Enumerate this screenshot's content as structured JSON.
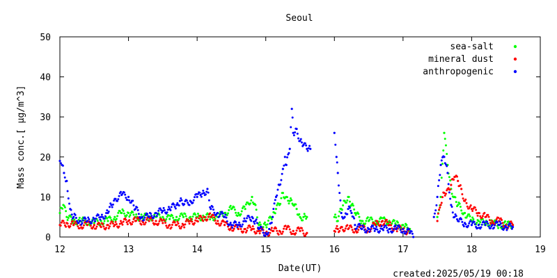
{
  "chart_data": {
    "type": "scatter",
    "title": "Seoul",
    "xlabel": "Date(UT)",
    "ylabel": "Mass conc.[ μg/m^3]",
    "xlim": [
      12,
      19
    ],
    "ylim": [
      0,
      50
    ],
    "x_ticks": [
      "12",
      "13",
      "14",
      "15",
      "16",
      "17",
      "18",
      "19"
    ],
    "y_ticks": [
      "0",
      "10",
      "20",
      "30",
      "40",
      "50"
    ],
    "grid": false,
    "legend_position": "top-right",
    "series": [
      {
        "name": "sea-salt",
        "color": "#00ff00",
        "points": [
          [
            12.0,
            6
          ],
          [
            12.05,
            8
          ],
          [
            12.1,
            5
          ],
          [
            12.2,
            4
          ],
          [
            12.3,
            4
          ],
          [
            12.4,
            4
          ],
          [
            12.5,
            3.5
          ],
          [
            12.6,
            4
          ],
          [
            12.7,
            4
          ],
          [
            12.8,
            5
          ],
          [
            12.9,
            6
          ],
          [
            13.0,
            6
          ],
          [
            13.1,
            5
          ],
          [
            13.2,
            5
          ],
          [
            13.3,
            5
          ],
          [
            13.4,
            5
          ],
          [
            13.5,
            5
          ],
          [
            13.6,
            4.5
          ],
          [
            13.7,
            5
          ],
          [
            13.8,
            5
          ],
          [
            13.9,
            5
          ],
          [
            14.0,
            5
          ],
          [
            14.1,
            5
          ],
          [
            14.2,
            5
          ],
          [
            14.3,
            5
          ],
          [
            14.4,
            6
          ],
          [
            14.5,
            7
          ],
          [
            14.6,
            6
          ],
          [
            14.7,
            7
          ],
          [
            14.8,
            10
          ],
          [
            14.85,
            8
          ],
          [
            14.9,
            3
          ],
          [
            14.95,
            2
          ],
          [
            15.0,
            3
          ],
          [
            15.1,
            5
          ],
          [
            15.15,
            7
          ],
          [
            15.2,
            8
          ],
          [
            15.25,
            11
          ],
          [
            15.3,
            10
          ],
          [
            15.35,
            9
          ],
          [
            15.4,
            8
          ],
          [
            15.45,
            7
          ],
          [
            15.5,
            5
          ],
          [
            15.55,
            5
          ],
          [
            15.6,
            5
          ],
          [
            16.0,
            5
          ],
          [
            16.05,
            4
          ],
          [
            16.1,
            7
          ],
          [
            16.15,
            9
          ],
          [
            16.2,
            10
          ],
          [
            16.25,
            8
          ],
          [
            16.3,
            6
          ],
          [
            16.4,
            4
          ],
          [
            16.5,
            4
          ],
          [
            16.6,
            4
          ],
          [
            16.7,
            4
          ],
          [
            16.8,
            4
          ],
          [
            16.9,
            3
          ],
          [
            17.0,
            3
          ],
          [
            17.05,
            3
          ],
          [
            17.1,
            2
          ],
          [
            17.5,
            5
          ],
          [
            17.55,
            10
          ],
          [
            17.6,
            26
          ],
          [
            17.65,
            18
          ],
          [
            17.7,
            12
          ],
          [
            17.75,
            10
          ],
          [
            17.8,
            8
          ],
          [
            17.9,
            6
          ],
          [
            18.0,
            4
          ],
          [
            18.1,
            4
          ],
          [
            18.2,
            3.5
          ],
          [
            18.3,
            3.5
          ],
          [
            18.4,
            3
          ],
          [
            18.5,
            3
          ],
          [
            18.6,
            3
          ]
        ]
      },
      {
        "name": "mineral dust",
        "color": "#ff0000",
        "points": [
          [
            12.0,
            3
          ],
          [
            12.1,
            3.5
          ],
          [
            12.2,
            3
          ],
          [
            12.3,
            3
          ],
          [
            12.4,
            3
          ],
          [
            12.5,
            3
          ],
          [
            12.6,
            2.5
          ],
          [
            12.7,
            3
          ],
          [
            12.8,
            3
          ],
          [
            12.9,
            3.5
          ],
          [
            13.0,
            4
          ],
          [
            13.1,
            4
          ],
          [
            13.2,
            4
          ],
          [
            13.3,
            4
          ],
          [
            13.4,
            4
          ],
          [
            13.5,
            3.5
          ],
          [
            13.6,
            3
          ],
          [
            13.7,
            3
          ],
          [
            13.8,
            3
          ],
          [
            13.9,
            4
          ],
          [
            14.0,
            4
          ],
          [
            14.1,
            5
          ],
          [
            14.2,
            5
          ],
          [
            14.3,
            4
          ],
          [
            14.4,
            3
          ],
          [
            14.5,
            2.5
          ],
          [
            14.6,
            2
          ],
          [
            14.7,
            2
          ],
          [
            14.8,
            2
          ],
          [
            14.9,
            1.5
          ],
          [
            15.0,
            1
          ],
          [
            15.1,
            1.5
          ],
          [
            15.2,
            1.5
          ],
          [
            15.3,
            2
          ],
          [
            15.4,
            1.5
          ],
          [
            15.5,
            1.5
          ],
          [
            15.6,
            1
          ],
          [
            16.0,
            1.5
          ],
          [
            16.05,
            2
          ],
          [
            16.1,
            2.5
          ],
          [
            16.2,
            2
          ],
          [
            16.3,
            2
          ],
          [
            16.4,
            2
          ],
          [
            16.5,
            2
          ],
          [
            16.6,
            3
          ],
          [
            16.7,
            4
          ],
          [
            16.8,
            3
          ],
          [
            16.9,
            2
          ],
          [
            17.0,
            2
          ],
          [
            17.1,
            1
          ],
          [
            17.5,
            4
          ],
          [
            17.55,
            8
          ],
          [
            17.6,
            11
          ],
          [
            17.65,
            12
          ],
          [
            17.7,
            13
          ],
          [
            17.75,
            15
          ],
          [
            17.8,
            14
          ],
          [
            17.85,
            12
          ],
          [
            17.9,
            9
          ],
          [
            18.0,
            7
          ],
          [
            18.1,
            6
          ],
          [
            18.2,
            5
          ],
          [
            18.3,
            4
          ],
          [
            18.4,
            4
          ],
          [
            18.5,
            3
          ],
          [
            18.6,
            3
          ]
        ]
      },
      {
        "name": "anthropogenic",
        "color": "#0000ff",
        "points": [
          [
            12.0,
            19
          ],
          [
            12.03,
            18
          ],
          [
            12.06,
            16
          ],
          [
            12.1,
            14
          ],
          [
            12.15,
            7
          ],
          [
            12.2,
            5
          ],
          [
            12.3,
            4
          ],
          [
            12.4,
            4
          ],
          [
            12.5,
            4.5
          ],
          [
            12.6,
            5
          ],
          [
            12.7,
            6
          ],
          [
            12.75,
            8
          ],
          [
            12.8,
            9.5
          ],
          [
            12.9,
            10.5
          ],
          [
            13.0,
            10
          ],
          [
            13.05,
            9
          ],
          [
            13.1,
            7
          ],
          [
            13.2,
            5
          ],
          [
            13.3,
            5
          ],
          [
            13.4,
            6
          ],
          [
            13.5,
            6.5
          ],
          [
            13.6,
            7
          ],
          [
            13.7,
            8
          ],
          [
            13.75,
            9
          ],
          [
            13.8,
            8
          ],
          [
            13.9,
            9
          ],
          [
            14.0,
            10
          ],
          [
            14.05,
            10.5
          ],
          [
            14.1,
            11
          ],
          [
            14.15,
            12
          ],
          [
            14.2,
            7
          ],
          [
            14.3,
            6
          ],
          [
            14.4,
            5
          ],
          [
            14.5,
            3
          ],
          [
            14.6,
            3
          ],
          [
            14.7,
            4
          ],
          [
            14.8,
            5
          ],
          [
            14.85,
            4
          ],
          [
            14.9,
            2
          ],
          [
            15.0,
            1
          ],
          [
            15.05,
            2
          ],
          [
            15.1,
            5
          ],
          [
            15.15,
            10
          ],
          [
            15.2,
            13
          ],
          [
            15.25,
            17
          ],
          [
            15.28,
            20
          ],
          [
            15.3,
            18
          ],
          [
            15.35,
            22
          ],
          [
            15.38,
            32
          ],
          [
            15.4,
            26
          ],
          [
            15.45,
            27
          ],
          [
            15.5,
            24
          ],
          [
            15.55,
            23
          ],
          [
            15.6,
            22
          ],
          [
            15.65,
            22
          ],
          [
            16.0,
            26
          ],
          [
            16.03,
            20
          ],
          [
            16.05,
            16
          ],
          [
            16.1,
            6
          ],
          [
            16.15,
            5
          ],
          [
            16.2,
            7
          ],
          [
            16.25,
            6
          ],
          [
            16.3,
            3
          ],
          [
            16.4,
            2
          ],
          [
            16.5,
            2
          ],
          [
            16.6,
            2
          ],
          [
            16.7,
            2
          ],
          [
            16.8,
            2
          ],
          [
            16.9,
            2
          ],
          [
            17.0,
            2
          ],
          [
            17.1,
            1
          ],
          [
            17.15,
            0
          ],
          [
            17.45,
            5
          ],
          [
            17.5,
            10
          ],
          [
            17.55,
            18
          ],
          [
            17.6,
            20
          ],
          [
            17.65,
            16
          ],
          [
            17.7,
            8
          ],
          [
            17.75,
            5
          ],
          [
            17.8,
            4
          ],
          [
            17.9,
            3.5
          ],
          [
            18.0,
            3
          ],
          [
            18.1,
            3
          ],
          [
            18.2,
            3
          ],
          [
            18.3,
            3
          ],
          [
            18.4,
            3
          ],
          [
            18.5,
            2.5
          ],
          [
            18.6,
            2.5
          ]
        ]
      }
    ]
  },
  "footer": {
    "created": "created:2025/05/19 00:18"
  }
}
